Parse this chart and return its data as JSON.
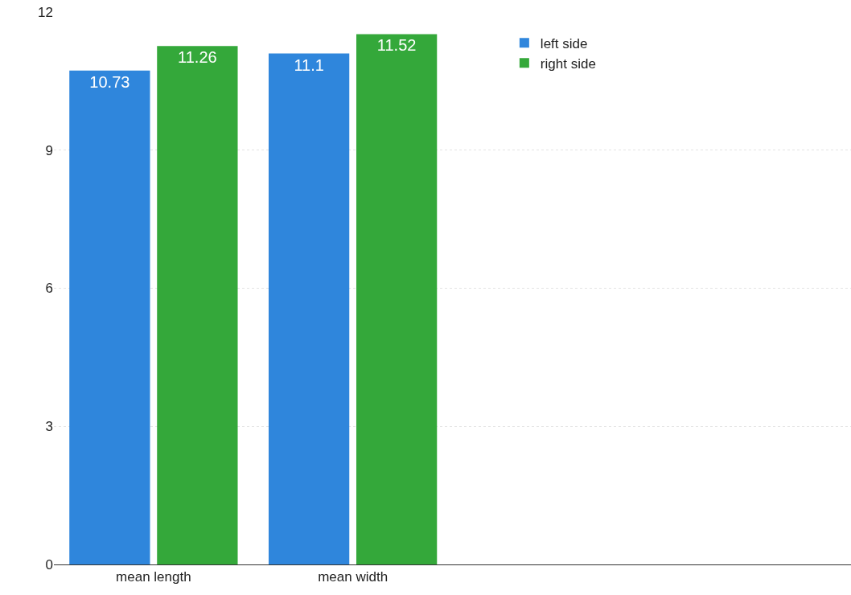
{
  "chart_data": {
    "type": "bar",
    "categories": [
      "mean length",
      "mean width"
    ],
    "series": [
      {
        "name": "left side",
        "color": "#2f86dc",
        "values": [
          10.73,
          11.1
        ]
      },
      {
        "name": "right side",
        "color": "#34a83a",
        "values": [
          11.26,
          11.52
        ]
      }
    ],
    "ylim": [
      0,
      12
    ],
    "yticks": [
      0,
      3,
      6,
      9,
      12
    ],
    "grid": "y",
    "legend": "top right",
    "data_labels": true
  }
}
